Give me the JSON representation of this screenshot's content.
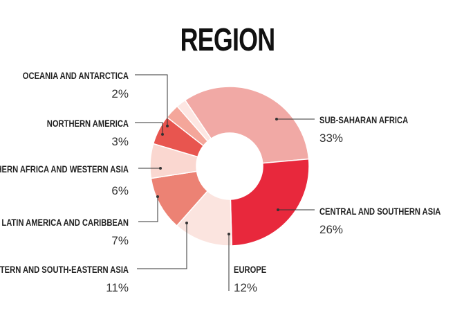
{
  "chart_data": {
    "type": "donut",
    "title": "REGION",
    "unit": "%",
    "slices": [
      {
        "label": "SUB-SAHARAN AFRICA",
        "value": 33,
        "value_label": "33%",
        "color": "#f1a9a5"
      },
      {
        "label": "CENTRAL AND SOUTHERN ASIA",
        "value": 26,
        "value_label": "26%",
        "color": "#e8283c"
      },
      {
        "label": "EUROPE",
        "value": 12,
        "value_label": "12%",
        "color": "#fbe4df"
      },
      {
        "label": "EASTERN AND SOUTH-EASTERN ASIA",
        "value": 11,
        "value_label": "11%",
        "color": "#ec8274"
      },
      {
        "label": "LATIN AMERICA AND CARIBBEAN",
        "value": 7,
        "value_label": "7%",
        "color": "#fad7d0"
      },
      {
        "label": "NORTHERN AFRICA AND WESTERN ASIA",
        "value": 6,
        "value_label": "6%",
        "color": "#e8554f"
      },
      {
        "label": "NORTHERN AMERICA",
        "value": 3,
        "value_label": "3%",
        "color": "#f4a69a"
      },
      {
        "label": "OCEANIA AND ANTARCTICA",
        "value": 2,
        "value_label": "2%",
        "color": "#fde6e2"
      }
    ]
  }
}
